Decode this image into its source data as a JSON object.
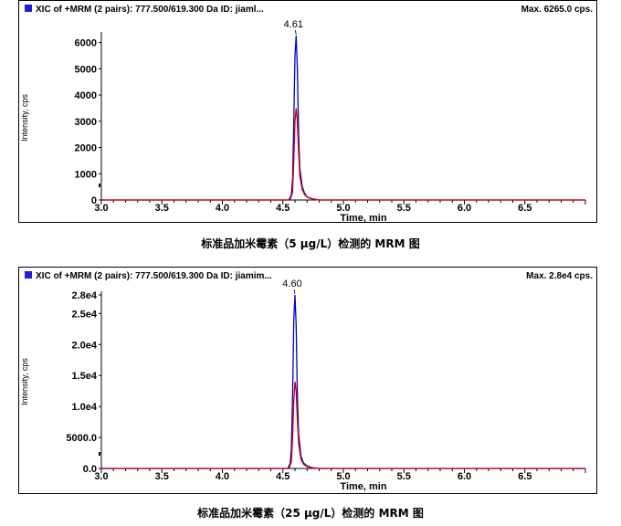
{
  "chart_data": [
    {
      "type": "line",
      "title": "XIC of +MRM (2 pairs): 777.500/619.300 Da ID: jiaml...",
      "max_label": "Max. 6265.0 cps.",
      "xlabel": "Time, min",
      "ylabel": "Intensity, cps",
      "xlim": [
        3.0,
        7.0
      ],
      "ylim": [
        0,
        6265
      ],
      "x_ticks": [
        3.0,
        3.5,
        4.0,
        4.5,
        5.0,
        5.5,
        6.0,
        6.5
      ],
      "x_tick_labels": [
        "3.0",
        "3.5",
        "4.0",
        "4.5",
        "5.0",
        "5.5",
        "6.0",
        "6.5"
      ],
      "y_ticks": [
        0,
        1000,
        2000,
        3000,
        4000,
        5000,
        6000
      ],
      "y_tick_labels": [
        "0",
        "1000",
        "2000",
        "3000",
        "4000",
        "5000",
        "6000"
      ],
      "peak_label": "4.61",
      "peak_label_x": 4.61,
      "grid": false,
      "caption": "标准品加米霉素（5 μg/L）检测的 MRM 图",
      "series": [
        {
          "color": "#0000cc",
          "x": [
            3.0,
            4.55,
            4.57,
            4.58,
            4.59,
            4.6,
            4.61,
            4.62,
            4.63,
            4.64,
            4.66,
            4.68,
            4.7,
            4.74,
            4.8,
            5.0,
            7.0
          ],
          "y": [
            0,
            0,
            200,
            800,
            3000,
            5500,
            6265,
            5000,
            2500,
            1200,
            500,
            250,
            120,
            50,
            0,
            0,
            0
          ]
        },
        {
          "color": "#cc0000",
          "x": [
            3.0,
            4.56,
            4.58,
            4.59,
            4.6,
            4.61,
            4.62,
            4.63,
            4.64,
            4.66,
            4.68,
            4.71,
            4.75,
            4.8,
            5.0,
            7.0
          ],
          "y": [
            0,
            0,
            300,
            1500,
            3000,
            3500,
            3000,
            1800,
            900,
            400,
            200,
            90,
            30,
            0,
            0,
            0
          ]
        }
      ]
    },
    {
      "type": "line",
      "title": "XIC of +MRM (2 pairs): 777.500/619.300 Da ID: jiamim...",
      "max_label": "Max. 2.8e4 cps.",
      "xlabel": "Time, min",
      "ylabel": "Intensity, cps",
      "xlim": [
        3.0,
        7.0
      ],
      "ylim": [
        0,
        28000
      ],
      "x_ticks": [
        3.0,
        3.5,
        4.0,
        4.5,
        5.0,
        5.5,
        6.0,
        6.5
      ],
      "x_tick_labels": [
        "3.0",
        "3.5",
        "4.0",
        "4.5",
        "5.0",
        "5.5",
        "6.0",
        "6.5"
      ],
      "y_ticks": [
        0,
        5000,
        10000,
        15000,
        20000,
        25000,
        28000
      ],
      "y_tick_labels": [
        "0.0",
        "5000.0",
        "1.0e4",
        "1.5e4",
        "2.0e4",
        "2.5e4",
        "2.8e4"
      ],
      "peak_label": "4.60",
      "peak_label_x": 4.6,
      "grid": false,
      "caption": "标准品加米霉素（25 μg/L）检测的 MRM 图",
      "series": [
        {
          "color": "#0000cc",
          "x": [
            3.0,
            4.54,
            4.56,
            4.57,
            4.58,
            4.59,
            4.6,
            4.61,
            4.62,
            4.63,
            4.65,
            4.67,
            4.7,
            4.74,
            4.8,
            5.0,
            7.0
          ],
          "y": [
            0,
            0,
            800,
            3000,
            12000,
            24000,
            28000,
            23000,
            12000,
            5500,
            2000,
            900,
            400,
            150,
            0,
            0,
            0
          ]
        },
        {
          "color": "#cc0000",
          "x": [
            3.0,
            4.55,
            4.57,
            4.58,
            4.59,
            4.6,
            4.61,
            4.62,
            4.63,
            4.65,
            4.67,
            4.7,
            4.74,
            4.8,
            5.0,
            7.0
          ],
          "y": [
            0,
            0,
            1000,
            5000,
            11000,
            14000,
            12500,
            8000,
            4000,
            1500,
            700,
            300,
            100,
            0,
            0,
            0
          ]
        }
      ]
    }
  ]
}
